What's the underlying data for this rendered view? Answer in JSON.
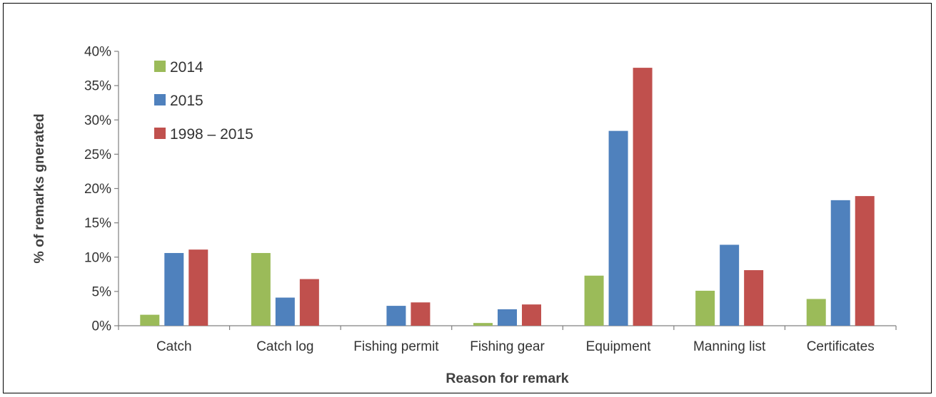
{
  "chart_data": {
    "type": "bar",
    "title": "",
    "xlabel": "Reason for remark",
    "ylabel": "% of remarks gnerated",
    "categories": [
      "Catch",
      "Catch log",
      "Fishing permit",
      "Fishing gear",
      "Equipment",
      "Manning list",
      "Certificates"
    ],
    "series": [
      {
        "name": "2014",
        "color": "#9BBB59",
        "values": [
          1.6,
          10.6,
          0.0,
          0.4,
          7.3,
          5.1,
          3.9
        ]
      },
      {
        "name": "2015",
        "color": "#4F81BD",
        "values": [
          10.6,
          4.1,
          2.9,
          2.4,
          28.4,
          11.8,
          18.3
        ]
      },
      {
        "name": "1998 – 2015",
        "color": "#C0504D",
        "values": [
          11.1,
          6.8,
          3.4,
          3.1,
          37.6,
          8.1,
          18.9
        ]
      }
    ],
    "ylim": [
      0,
      40
    ],
    "yticks": [
      0,
      5,
      10,
      15,
      20,
      25,
      30,
      35,
      40
    ],
    "ytick_labels": [
      "0%",
      "5%",
      "10%",
      "15%",
      "20%",
      "25%",
      "30%",
      "35%",
      "40%"
    ],
    "grid": false,
    "legend_position": "top-left"
  }
}
